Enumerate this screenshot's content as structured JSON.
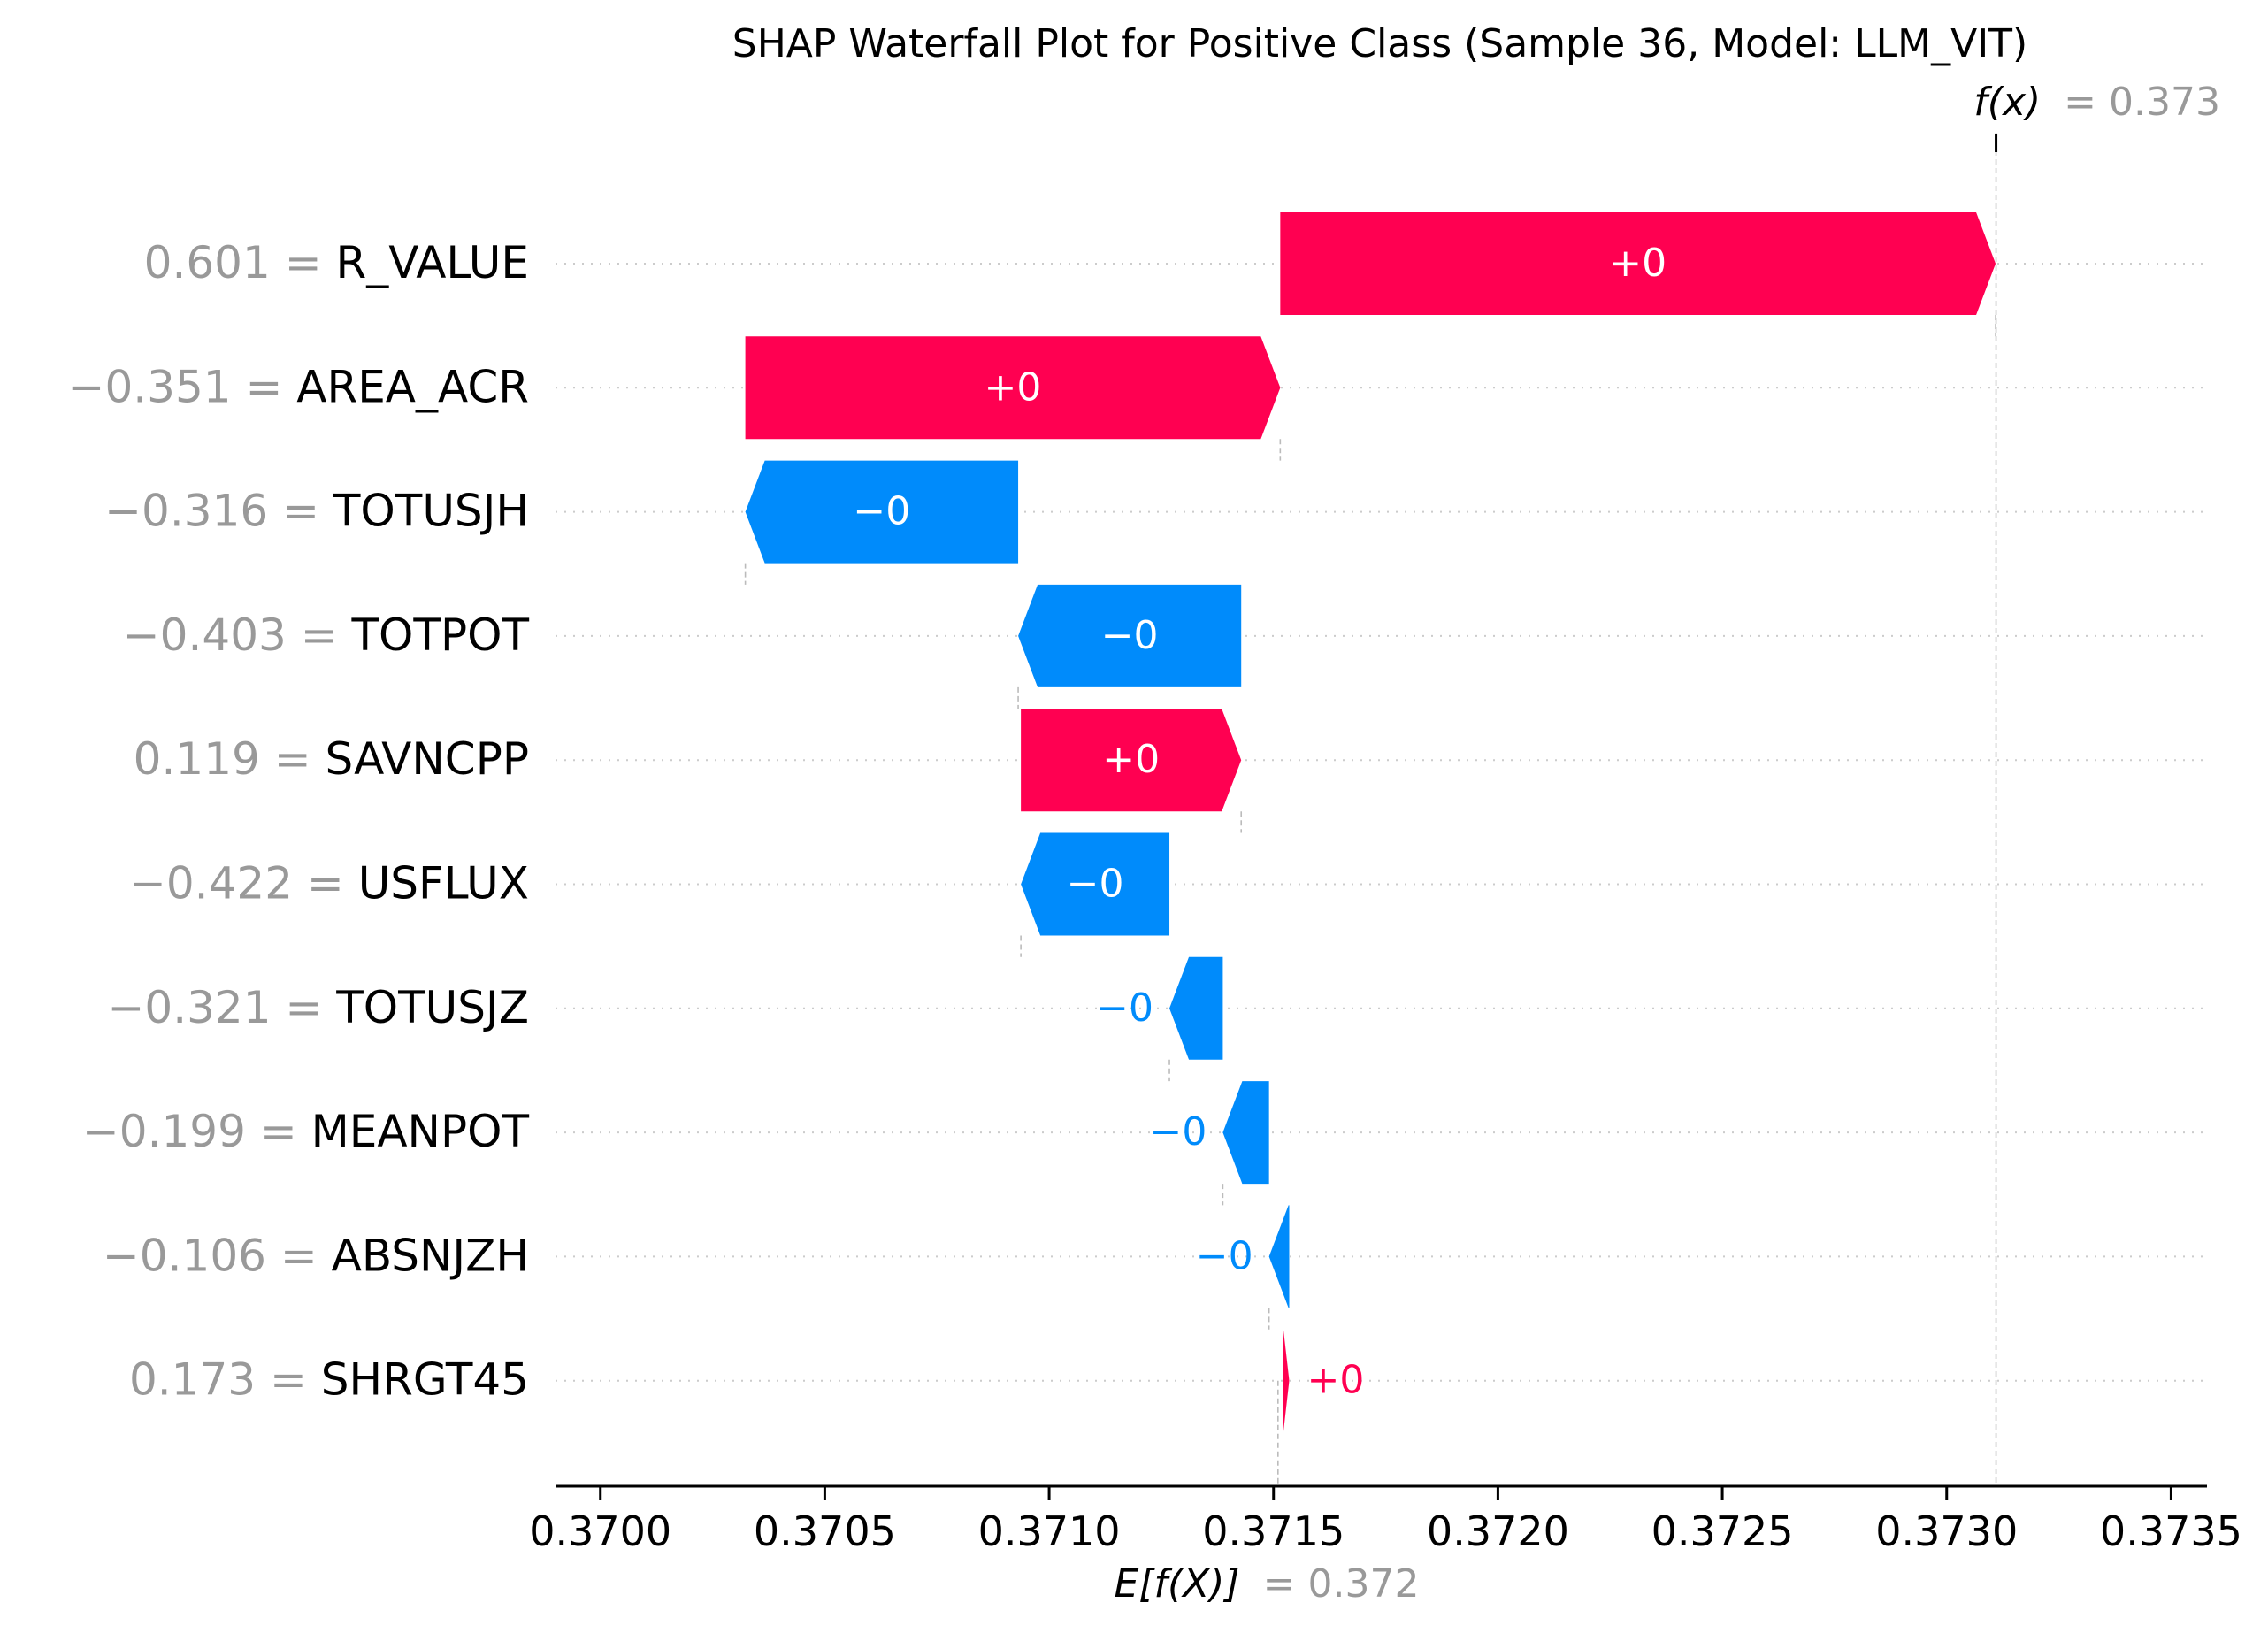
{
  "chart_data": {
    "type": "waterfall",
    "title": "SHAP Waterfall Plot for Positive Class (Sample 36, Model: LLM_VIT)",
    "fx_label": "f(x)",
    "fx_value_text": "= 0.373",
    "fx": 0.37311,
    "efx_label": "E[f(X)]",
    "efx_value_text": "= 0.372",
    "base_value": 0.37151,
    "xlim": [
      0.3699,
      0.37358
    ],
    "ticks": [
      0.37,
      0.3705,
      0.371,
      0.3715,
      0.372,
      0.3725,
      0.373,
      0.3735
    ],
    "tick_labels": [
      "0.3700",
      "0.3705",
      "0.3710",
      "0.3715",
      "0.3720",
      "0.3725",
      "0.3730",
      "0.3735"
    ],
    "grid": "horizontal dotted",
    "colors": {
      "positive": "#ff0051",
      "negative": "#008bfb",
      "value_gray": "#999999",
      "axis": "#000000"
    },
    "features": [
      {
        "name": "R_VALUE",
        "value": "0.601",
        "start": 0.371515,
        "end": 0.373109,
        "label": "+0"
      },
      {
        "name": "AREA_ACR",
        "value": "−0.351",
        "start": 0.370323,
        "end": 0.371515,
        "label": "+0"
      },
      {
        "name": "TOTUSJH",
        "value": "−0.316",
        "start": 0.370931,
        "end": 0.370323,
        "label": "−0"
      },
      {
        "name": "TOTPOT",
        "value": "−0.403",
        "start": 0.371428,
        "end": 0.370931,
        "label": "−0"
      },
      {
        "name": "SAVNCPP",
        "value": "0.119",
        "start": 0.370937,
        "end": 0.371428,
        "label": "+0"
      },
      {
        "name": "USFLUX",
        "value": "−0.422",
        "start": 0.371268,
        "end": 0.370937,
        "label": "−0"
      },
      {
        "name": "TOTUSJZ",
        "value": "−0.321",
        "start": 0.371387,
        "end": 0.371268,
        "label": "−0"
      },
      {
        "name": "MEANPOT",
        "value": "−0.199",
        "start": 0.37149,
        "end": 0.371387,
        "label": "−0"
      },
      {
        "name": "ABSNJZH",
        "value": "−0.106",
        "start": 0.371535,
        "end": 0.37149,
        "label": "−0"
      },
      {
        "name": "SHRGT45",
        "value": "0.173",
        "start": 0.371522,
        "end": 0.371535,
        "label": "+0"
      }
    ]
  }
}
